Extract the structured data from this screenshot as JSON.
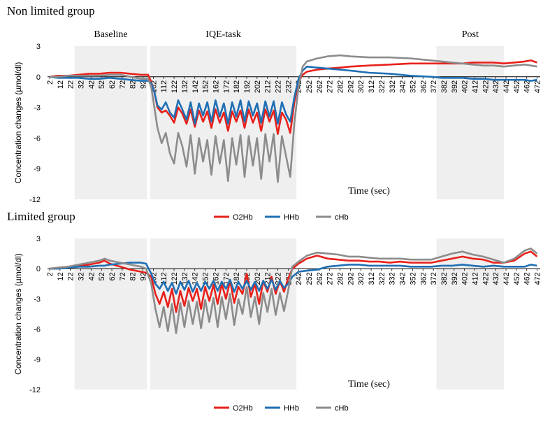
{
  "panels": [
    {
      "title": "Non limited group"
    },
    {
      "title": "Limited group"
    }
  ],
  "colors": {
    "O2Hb": "#e8211b",
    "HHb": "#1f6fb4",
    "cHb": "#8c8c8c",
    "band": "#efefef"
  },
  "chart_data": [
    {
      "type": "line",
      "title": "Non limited group",
      "xlabel": "Time  (sec)",
      "ylabel": "Concentration changes (µmol/dl)",
      "ylim": [
        -12,
        3
      ],
      "yticks": [
        3,
        0,
        -3,
        -6,
        -9,
        -12
      ],
      "xlim": [
        0,
        475
      ],
      "xticks": [
        2,
        12,
        22,
        32,
        42,
        52,
        62,
        72,
        82,
        92,
        102,
        112,
        122,
        132,
        142,
        152,
        162,
        172,
        182,
        192,
        202,
        212,
        222,
        232,
        242,
        252,
        262,
        272,
        282,
        292,
        302,
        312,
        322,
        332,
        342,
        352,
        362,
        372,
        382,
        392,
        402,
        412,
        422,
        432,
        442,
        452,
        462,
        472
      ],
      "phases": [
        {
          "label": "Baseline",
          "from": 26,
          "to": 96
        },
        {
          "label": "IQE-task",
          "from": 99,
          "to": 240
        },
        {
          "label": "Post",
          "from": 375,
          "to": 440
        }
      ],
      "legend": [
        "O2Hb",
        "HHb",
        "cHb"
      ],
      "series": [
        {
          "name": "O2Hb",
          "x": [
            2,
            10,
            20,
            30,
            40,
            50,
            60,
            70,
            80,
            90,
            97,
            100,
            103,
            106,
            110,
            114,
            118,
            122,
            126,
            130,
            134,
            138,
            142,
            146,
            150,
            154,
            158,
            162,
            166,
            170,
            174,
            178,
            182,
            186,
            190,
            194,
            198,
            202,
            206,
            210,
            214,
            218,
            222,
            226,
            230,
            234,
            238,
            242,
            246,
            250,
            260,
            270,
            282,
            292,
            310,
            330,
            350,
            370,
            380,
            390,
            400,
            410,
            420,
            430,
            440,
            450,
            460,
            466,
            472
          ],
          "y": [
            0,
            0.1,
            0.1,
            0.2,
            0.3,
            0.3,
            0.4,
            0.4,
            0.3,
            0.2,
            0.2,
            -0.5,
            -1.5,
            -3,
            -3.5,
            -3.3,
            -3.8,
            -4.5,
            -3,
            -3.6,
            -4.6,
            -3.2,
            -4.9,
            -3.3,
            -4.4,
            -3.4,
            -5,
            -3.2,
            -4.5,
            -3.5,
            -5.3,
            -3.4,
            -4.4,
            -3.3,
            -5,
            -3.2,
            -4.5,
            -3.5,
            -5.3,
            -3.2,
            -4.4,
            -3.3,
            -5.6,
            -3.5,
            -4.2,
            -5.5,
            -2.5,
            -0.5,
            0.2,
            0.5,
            0.7,
            0.8,
            0.9,
            1,
            1.1,
            1.2,
            1.3,
            1.3,
            1.3,
            1.3,
            1.3,
            1.4,
            1.4,
            1.4,
            1.3,
            1.4,
            1.5,
            1.6,
            1.4
          ]
        },
        {
          "name": "HHb",
          "x": [
            2,
            10,
            20,
            30,
            40,
            50,
            60,
            70,
            80,
            90,
            97,
            100,
            103,
            106,
            110,
            114,
            118,
            122,
            126,
            130,
            134,
            138,
            142,
            146,
            150,
            154,
            158,
            162,
            166,
            170,
            174,
            178,
            182,
            186,
            190,
            194,
            198,
            202,
            206,
            210,
            214,
            218,
            222,
            226,
            230,
            234,
            238,
            242,
            246,
            250,
            260,
            270,
            282,
            292,
            310,
            330,
            350,
            370,
            380,
            390,
            400,
            410,
            420,
            430,
            440,
            450,
            460,
            466,
            472
          ],
          "y": [
            0,
            -0.1,
            -0.1,
            -0.1,
            -0.2,
            -0.2,
            -0.1,
            -0.2,
            -0.3,
            -0.4,
            -0.4,
            -0.6,
            -1.5,
            -2.8,
            -3.2,
            -2.5,
            -3.5,
            -4,
            -2.3,
            -3.2,
            -4.2,
            -2.5,
            -4.6,
            -2.6,
            -3.8,
            -2.5,
            -4.4,
            -2.3,
            -3.9,
            -2.6,
            -4.6,
            -2.5,
            -3.9,
            -2.3,
            -4.4,
            -2.4,
            -3.8,
            -2.6,
            -4.5,
            -2.4,
            -3.9,
            -2.4,
            -4.6,
            -2.5,
            -3.7,
            -4.4,
            -2,
            -0.2,
            0.6,
            1,
            0.9,
            0.8,
            0.7,
            0.6,
            0.4,
            0.3,
            0.1,
            0,
            -0.1,
            -0.1,
            -0.1,
            -0.2,
            -0.2,
            -0.3,
            -0.3,
            -0.3,
            -0.3,
            -0.4,
            -0.3
          ]
        },
        {
          "name": "cHb",
          "x": [
            2,
            10,
            20,
            30,
            40,
            50,
            60,
            70,
            80,
            90,
            97,
            100,
            103,
            106,
            110,
            114,
            118,
            122,
            126,
            130,
            134,
            138,
            142,
            146,
            150,
            154,
            158,
            162,
            166,
            170,
            174,
            178,
            182,
            186,
            190,
            194,
            198,
            202,
            206,
            210,
            214,
            218,
            222,
            226,
            230,
            234,
            238,
            242,
            246,
            250,
            260,
            270,
            282,
            292,
            310,
            330,
            350,
            370,
            380,
            390,
            400,
            410,
            420,
            430,
            440,
            450,
            460,
            466,
            472
          ],
          "y": [
            0,
            0,
            0.1,
            0.1,
            0.1,
            0.1,
            0.2,
            0.2,
            0,
            -0.2,
            -0.2,
            -1,
            -3,
            -5,
            -6.5,
            -5.5,
            -7.5,
            -8.5,
            -5.5,
            -6.8,
            -8.8,
            -5.7,
            -9.5,
            -6,
            -8.3,
            -6.2,
            -9.6,
            -5.8,
            -8.5,
            -6.2,
            -10.2,
            -6,
            -8.6,
            -5.7,
            -9.8,
            -5.8,
            -8.7,
            -6,
            -10,
            -5.6,
            -8.3,
            -5.6,
            -10.3,
            -5.8,
            -7.8,
            -9.8,
            -4.5,
            -1,
            1,
            1.5,
            1.8,
            2,
            2.1,
            2,
            1.9,
            1.9,
            1.8,
            1.6,
            1.5,
            1.4,
            1.3,
            1.2,
            1.1,
            1.1,
            1,
            1.1,
            1.2,
            1.1,
            1
          ]
        }
      ]
    },
    {
      "type": "line",
      "title": "Limited group",
      "xlabel": "Time  (sec)",
      "ylabel": "Concentration changes (µmol/dl)",
      "ylim": [
        -12,
        3
      ],
      "yticks": [
        3,
        0,
        -3,
        -6,
        -9,
        -12
      ],
      "xlim": [
        0,
        475
      ],
      "xticks": [
        2,
        12,
        22,
        32,
        42,
        52,
        62,
        72,
        82,
        92,
        102,
        112,
        122,
        132,
        142,
        152,
        162,
        172,
        182,
        192,
        202,
        212,
        222,
        232,
        242,
        252,
        262,
        272,
        282,
        292,
        302,
        312,
        322,
        332,
        342,
        352,
        362,
        372,
        382,
        392,
        402,
        412,
        422,
        432,
        442,
        452,
        462,
        472
      ],
      "phases": [
        {
          "label": "",
          "from": 26,
          "to": 96
        },
        {
          "label": "",
          "from": 99,
          "to": 240
        },
        {
          "label": "",
          "from": 375,
          "to": 440
        }
      ],
      "legend": [
        "O2Hb",
        "HHb",
        "cHb"
      ],
      "series": [
        {
          "name": "O2Hb",
          "x": [
            2,
            10,
            20,
            30,
            40,
            50,
            55,
            60,
            70,
            80,
            90,
            95,
            100,
            104,
            108,
            112,
            116,
            120,
            124,
            128,
            132,
            136,
            140,
            144,
            148,
            152,
            156,
            160,
            164,
            168,
            172,
            176,
            180,
            184,
            188,
            192,
            196,
            200,
            204,
            208,
            212,
            216,
            220,
            224,
            228,
            232,
            236,
            242,
            250,
            260,
            270,
            280,
            290,
            300,
            310,
            320,
            330,
            340,
            350,
            360,
            370,
            380,
            390,
            400,
            410,
            420,
            430,
            440,
            450,
            460,
            466,
            472
          ],
          "y": [
            0,
            0.1,
            0.2,
            0.3,
            0.4,
            0.6,
            0.8,
            0.5,
            0.2,
            -0.1,
            -0.3,
            -0.4,
            -0.8,
            -2.5,
            -3.5,
            -2.3,
            -3.8,
            -2,
            -4.3,
            -2.2,
            -3.7,
            -1.9,
            -3.2,
            -2,
            -4,
            -1.8,
            -3.2,
            -1.6,
            -3.5,
            -1.5,
            -3,
            -1.2,
            -3.4,
            -1.8,
            -2.5,
            -0.5,
            -2.8,
            -1.5,
            -3.5,
            -1.2,
            -2.3,
            -0.8,
            -2.5,
            -1.2,
            -2.3,
            -1,
            0,
            0.5,
            1,
            1.3,
            1,
            0.9,
            0.8,
            0.8,
            0.7,
            0.7,
            0.6,
            0.7,
            0.6,
            0.6,
            0.6,
            0.8,
            1,
            1.2,
            1,
            0.9,
            0.6,
            0.6,
            0.8,
            1.5,
            1.7,
            1.2
          ]
        },
        {
          "name": "HHb",
          "x": [
            2,
            10,
            20,
            30,
            40,
            50,
            55,
            60,
            70,
            80,
            90,
            95,
            100,
            104,
            108,
            112,
            116,
            120,
            124,
            128,
            132,
            136,
            140,
            144,
            148,
            152,
            156,
            160,
            164,
            168,
            172,
            176,
            180,
            184,
            188,
            192,
            196,
            200,
            204,
            208,
            212,
            216,
            220,
            224,
            228,
            232,
            236,
            242,
            250,
            260,
            270,
            280,
            290,
            300,
            310,
            320,
            330,
            340,
            350,
            360,
            370,
            380,
            390,
            400,
            410,
            420,
            430,
            440,
            450,
            460,
            466,
            472
          ],
          "y": [
            0,
            0,
            0.1,
            0.2,
            0.2,
            0.3,
            0.3,
            0.4,
            0.5,
            0.6,
            0.6,
            0.5,
            -0.5,
            -1.5,
            -2,
            -1.3,
            -2.2,
            -1.4,
            -2.5,
            -1.3,
            -2.1,
            -1.2,
            -2.3,
            -1.4,
            -2.2,
            -1.3,
            -2,
            -1.2,
            -2.2,
            -1.3,
            -2,
            -1.1,
            -2.3,
            -1.3,
            -2,
            -1.2,
            -2.1,
            -1.3,
            -2.2,
            -1.2,
            -2,
            -1.1,
            -2.1,
            -1.2,
            -1.9,
            -1.5,
            -0.8,
            -0.3,
            -0.2,
            -0.1,
            0.2,
            0.3,
            0.4,
            0.4,
            0.3,
            0.3,
            0.3,
            0.3,
            0.2,
            0.2,
            0.2,
            0.3,
            0.3,
            0.4,
            0.3,
            0.2,
            0.3,
            0.2,
            0.2,
            0.2,
            0.4,
            0.3
          ]
        },
        {
          "name": "cHb",
          "x": [
            2,
            10,
            20,
            30,
            40,
            50,
            55,
            60,
            70,
            80,
            90,
            95,
            100,
            104,
            108,
            112,
            116,
            120,
            124,
            128,
            132,
            136,
            140,
            144,
            148,
            152,
            156,
            160,
            164,
            168,
            172,
            176,
            180,
            184,
            188,
            192,
            196,
            200,
            204,
            208,
            212,
            216,
            220,
            224,
            228,
            232,
            236,
            242,
            250,
            260,
            270,
            280,
            290,
            300,
            310,
            320,
            330,
            340,
            350,
            360,
            370,
            380,
            390,
            400,
            410,
            420,
            430,
            440,
            450,
            460,
            466,
            472
          ],
          "y": [
            0,
            0.1,
            0.2,
            0.4,
            0.6,
            0.8,
            1,
            0.8,
            0.6,
            0.4,
            0.2,
            0,
            -1.5,
            -4,
            -5.8,
            -3.8,
            -6.2,
            -3.5,
            -6.4,
            -3.4,
            -5.8,
            -3.2,
            -5.5,
            -3.3,
            -5.9,
            -3.1,
            -5.3,
            -2.9,
            -5.8,
            -2.8,
            -5,
            -2.5,
            -5.6,
            -3,
            -4.5,
            -1.8,
            -4.8,
            -2.8,
            -5.5,
            -2.4,
            -4.3,
            -2,
            -4.6,
            -2.4,
            -4.2,
            -2.2,
            0.2,
            0.7,
            1.3,
            1.6,
            1.5,
            1.4,
            1.2,
            1.2,
            1.1,
            1,
            1,
            1,
            0.9,
            0.9,
            0.9,
            1.2,
            1.5,
            1.7,
            1.4,
            1.2,
            0.9,
            0.6,
            1,
            1.8,
            2,
            1.5
          ]
        }
      ]
    }
  ]
}
